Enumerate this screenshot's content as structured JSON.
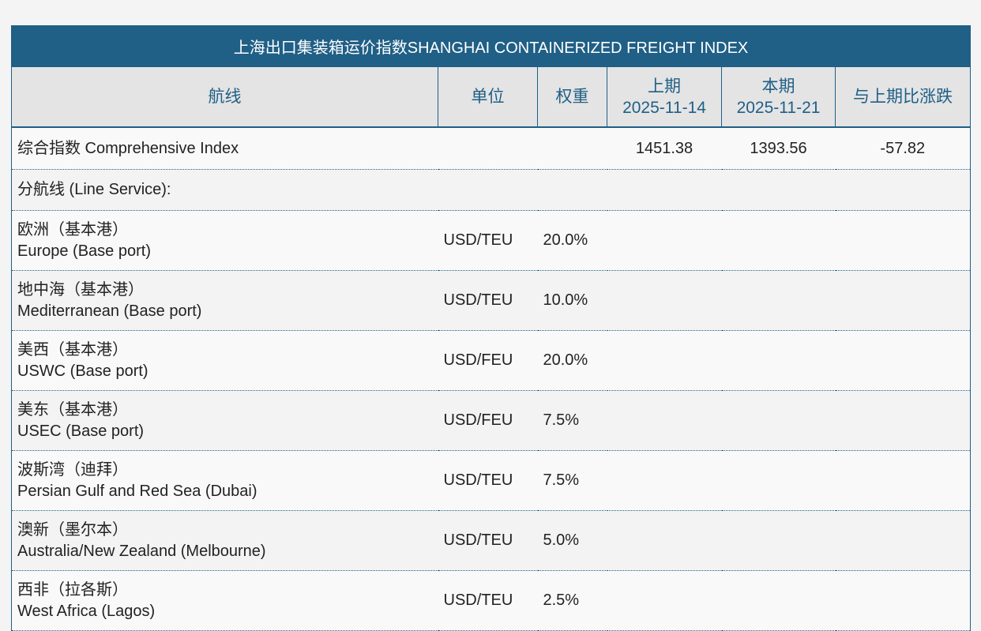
{
  "table": {
    "title": "上海出口集装箱运价指数SHANGHAI CONTAINERIZED FREIGHT INDEX",
    "headers": {
      "route": "航线",
      "unit": "单位",
      "weight": "权重",
      "prev_label": "上期",
      "prev_date": "2025-11-14",
      "curr_label": "本期",
      "curr_date": "2025-11-21",
      "change": "与上期比涨跌"
    },
    "comprehensive": {
      "name": "综合指数 Comprehensive Index",
      "prev": "1451.38",
      "curr": "1393.56",
      "change": "-57.82"
    },
    "line_service_label": "分航线 (Line Service):",
    "routes": [
      {
        "cn": "欧洲（基本港）",
        "en": "Europe (Base port)",
        "unit": "USD/TEU",
        "weight": "20.0%"
      },
      {
        "cn": "地中海（基本港）",
        "en": "Mediterranean (Base port)",
        "unit": "USD/TEU",
        "weight": "10.0%"
      },
      {
        "cn": "美西（基本港）",
        "en": "USWC (Base port)",
        "unit": "USD/FEU",
        "weight": "20.0%"
      },
      {
        "cn": "美东（基本港）",
        "en": "USEC (Base port)",
        "unit": "USD/FEU",
        "weight": "7.5%"
      },
      {
        "cn": "波斯湾（迪拜）",
        "en": "Persian Gulf and Red Sea (Dubai)",
        "unit": "USD/TEU",
        "weight": "7.5%"
      },
      {
        "cn": "澳新（墨尔本）",
        "en": "Australia/New Zealand (Melbourne)",
        "unit": "USD/TEU",
        "weight": "5.0%"
      },
      {
        "cn": "西非（拉各斯）",
        "en": "West Africa (Lagos)",
        "unit": "USD/TEU",
        "weight": "2.5%"
      }
    ]
  },
  "colors": {
    "header_blue": "#205f86",
    "header_gray": "#e4e4e4"
  }
}
